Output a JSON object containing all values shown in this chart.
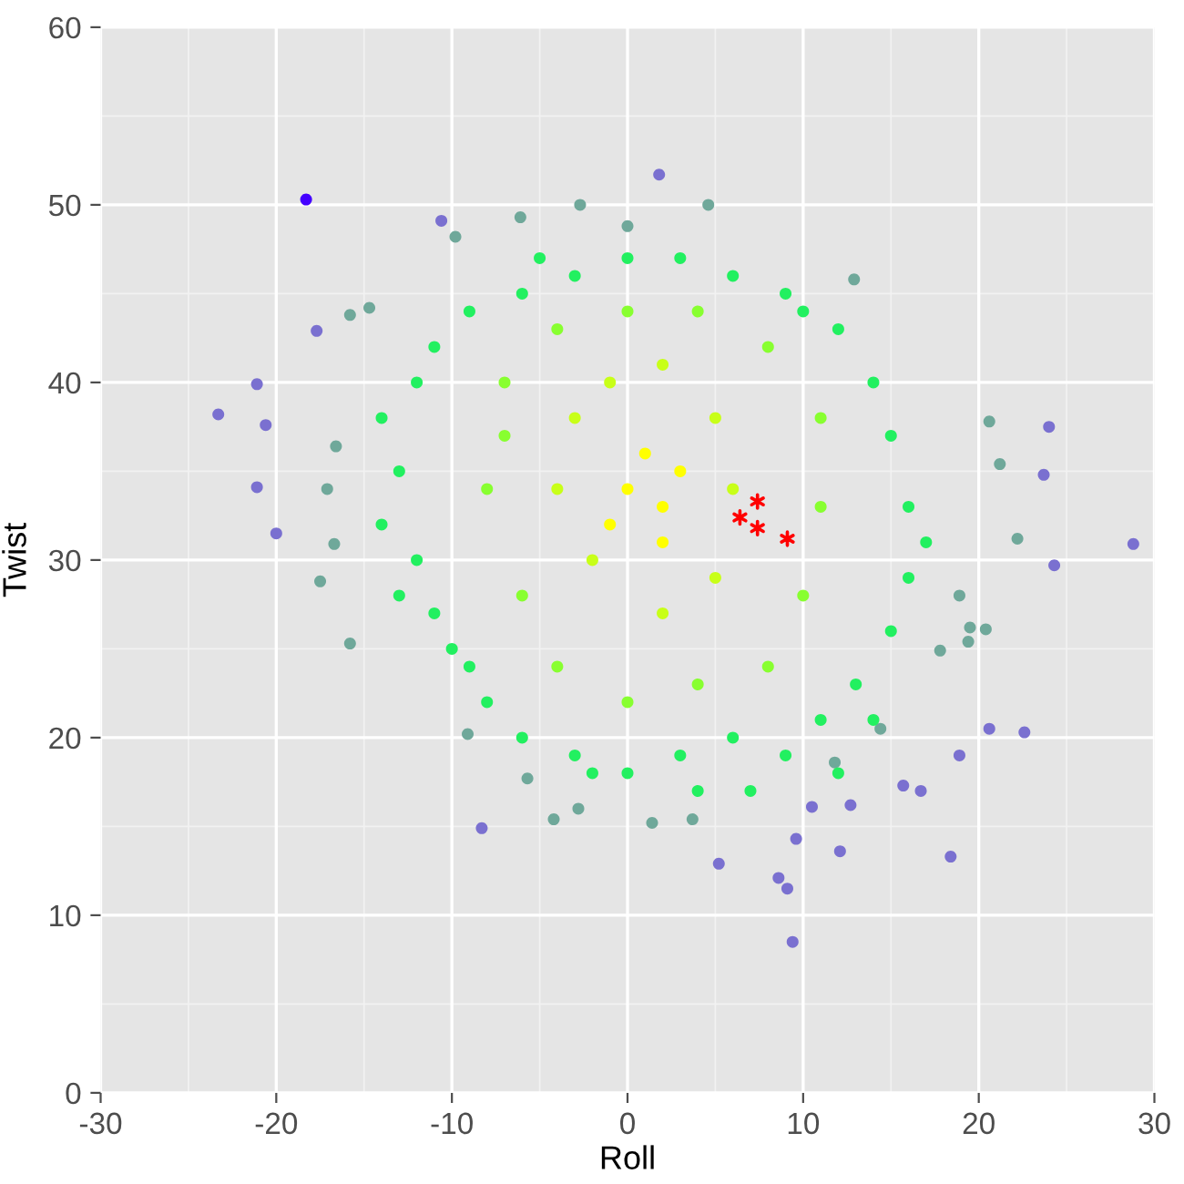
{
  "chart_data": {
    "type": "scatter",
    "xlabel": "Roll",
    "ylabel": "Twist",
    "xlim": [
      -30,
      30
    ],
    "ylim": [
      0,
      60
    ],
    "xticks": [
      -30,
      -20,
      -10,
      0,
      10,
      20,
      30
    ],
    "yticks": [
      0,
      10,
      20,
      30,
      40,
      50,
      60
    ],
    "grid": true,
    "marker": "circle",
    "series": [
      {
        "color": "#7a70d0",
        "x": [
          -23.3,
          -21.1,
          -20.6,
          -21.1,
          -20.0,
          -17.7,
          28.8,
          24.0,
          23.7,
          24.3,
          -10.6,
          -8.3,
          9.4,
          9.1,
          8.6,
          5.2,
          9.6,
          12.1,
          18.4,
          18.9,
          22.6,
          20.6,
          15.7,
          16.7,
          12.7,
          10.5,
          1.8
        ],
        "values": [
          38.2,
          39.9,
          37.6,
          34.1,
          31.5,
          42.9,
          30.9,
          37.5,
          34.8,
          29.7,
          49.1,
          14.9,
          8.5,
          11.5,
          12.1,
          12.9,
          14.3,
          13.6,
          13.3,
          19.0,
          20.3,
          20.5,
          17.3,
          17.0,
          16.2,
          16.1,
          51.7
        ]
      },
      {
        "color": "#4400ff",
        "x": [
          -18.3
        ],
        "values": [
          50.3
        ]
      },
      {
        "color": "#6fa89a",
        "x": [
          -15.8,
          -14.7,
          -16.6,
          -17.1,
          -16.7,
          -17.5,
          -15.8,
          -6.1,
          -2.7,
          -9.8,
          0.0,
          4.6,
          12.9,
          20.6,
          21.2,
          22.2,
          20.4,
          19.4,
          18.9,
          -9.1,
          -5.7,
          -4.2,
          -2.8,
          1.4,
          3.7,
          11.8,
          14.4,
          17.8,
          19.5
        ],
        "values": [
          43.8,
          44.2,
          36.4,
          34.0,
          30.9,
          28.8,
          25.3,
          49.3,
          50.0,
          48.2,
          48.8,
          50.0,
          45.8,
          37.8,
          35.4,
          31.2,
          26.1,
          25.4,
          28.0,
          20.2,
          17.7,
          15.4,
          16.0,
          15.2,
          15.4,
          18.6,
          20.5,
          24.9,
          26.2
        ]
      },
      {
        "color": "#22f060",
        "x": [
          -12,
          -13,
          -12,
          -11,
          -10,
          -8,
          -6,
          -3,
          0,
          3,
          6,
          9,
          11,
          13,
          15,
          16,
          16,
          15,
          14,
          12,
          9,
          6,
          3,
          0,
          -3,
          -6,
          -9,
          -11,
          -14,
          -14,
          -13,
          17,
          14,
          -9,
          10,
          -5,
          7,
          4,
          -2,
          12
        ],
        "values": [
          40,
          35,
          30,
          27,
          25,
          22,
          20,
          19,
          18,
          19,
          20,
          19,
          21,
          23,
          26,
          29,
          33,
          37,
          40,
          43,
          45,
          46,
          47,
          47,
          46,
          45,
          44,
          42,
          38,
          32,
          28,
          31,
          21,
          24,
          44,
          47,
          17,
          17,
          18,
          18
        ]
      },
      {
        "color": "#88ff30",
        "x": [
          -8,
          -7,
          -6,
          -4,
          0,
          4,
          8,
          10,
          11,
          11,
          8,
          4,
          0,
          -4,
          -7
        ],
        "values": [
          34,
          40,
          28,
          24,
          22,
          23,
          24,
          28,
          33,
          38,
          42,
          44,
          44,
          43,
          37
        ]
      },
      {
        "color": "#c8ff18",
        "x": [
          -4,
          -3,
          -2,
          2,
          5,
          6,
          5,
          2,
          -1
        ],
        "values": [
          34,
          38,
          30,
          27,
          29,
          34,
          38,
          41,
          40
        ]
      },
      {
        "color": "#ffff00",
        "x": [
          0,
          2,
          1,
          3,
          2,
          -1
        ],
        "values": [
          34,
          33,
          36,
          35,
          31,
          32
        ]
      },
      {
        "color": "#ff0000",
        "marker": "cross",
        "x": [
          6.4,
          7.4,
          7.4,
          9.1
        ],
        "values": [
          32.4,
          33.3,
          31.8,
          31.2
        ]
      }
    ]
  }
}
